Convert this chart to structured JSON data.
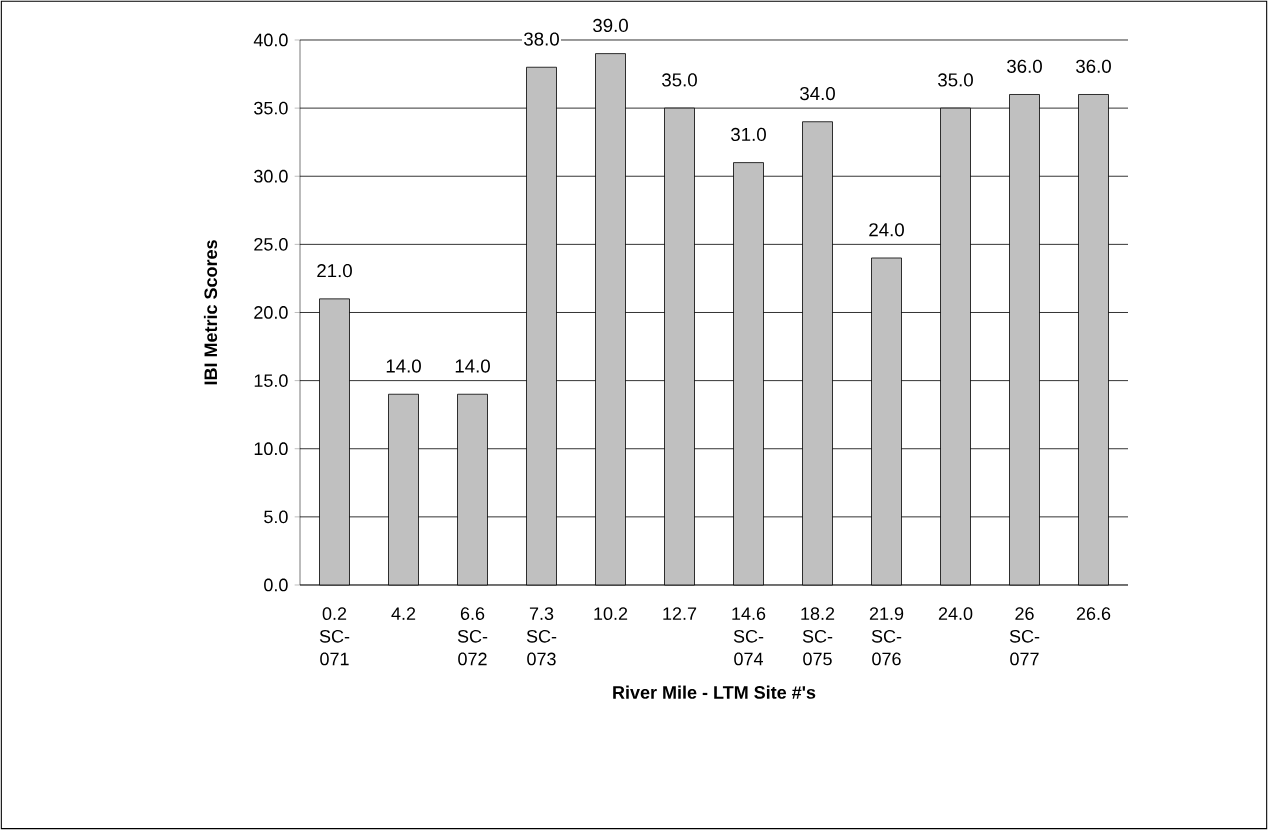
{
  "chart_data": {
    "type": "bar",
    "xlabel": "River Mile - LTM Site #'s",
    "ylabel": "IBI Metric Scores",
    "categories": [
      "0.2 SC-071",
      "4.2",
      "6.6 SC-072",
      "7.3 SC-073",
      "10.2",
      "12.7",
      "14.6 SC-074",
      "18.2 SC-075",
      "21.9 SC-076",
      "24.0",
      "26 SC-077",
      "26.6"
    ],
    "values": [
      21.0,
      14.0,
      14.0,
      38.0,
      39.0,
      35.0,
      31.0,
      34.0,
      24.0,
      35.0,
      36.0,
      36.0
    ],
    "value_labels": [
      "21.0",
      "14.0",
      "14.0",
      "38.0",
      "39.0",
      "35.0",
      "31.0",
      "34.0",
      "24.0",
      "35.0",
      "36.0",
      "36.0"
    ],
    "color": "#c0c0c0",
    "grid": "y",
    "ylim": [
      0,
      40
    ],
    "yticks": [
      {
        "value": 0,
        "label": "0.0"
      },
      {
        "value": 5,
        "label": "5.0"
      },
      {
        "value": 10,
        "label": "10.0"
      },
      {
        "value": 15,
        "label": "15.0"
      },
      {
        "value": 20,
        "label": "20.0"
      },
      {
        "value": 25,
        "label": "25.0"
      },
      {
        "value": 30,
        "label": "30.0"
      },
      {
        "value": 35,
        "label": "35.0"
      },
      {
        "value": 40,
        "label": "40.0"
      }
    ]
  }
}
